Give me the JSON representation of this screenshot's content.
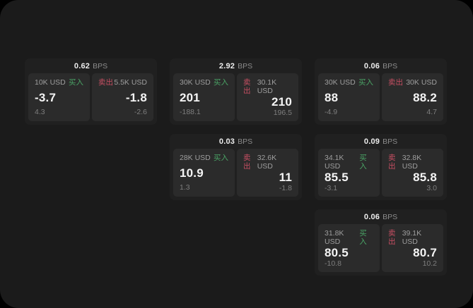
{
  "labels": {
    "buy": "买入",
    "sell": "卖出",
    "bps": "BPS"
  },
  "colors": {
    "buy_green": "#4aa365",
    "sell_red": "#c74f63",
    "surface_bg": "#1b1b1b",
    "card_bg": "#202020",
    "panel_bg": "#2b2b2b"
  },
  "cards": [
    {
      "position": "r1 c1",
      "bps": "0.62",
      "buy": {
        "amount": "10K USD",
        "value": "-3.7",
        "sub": "4.3"
      },
      "sell": {
        "amount": "5.5K USD",
        "value": "-1.8",
        "sub": "-2.6"
      }
    },
    {
      "position": "r1 c2",
      "bps": "2.92",
      "buy": {
        "amount": "30K USD",
        "value": "201",
        "sub": "-188.1"
      },
      "sell": {
        "amount": "30.1K USD",
        "value": "210",
        "sub": "196.5"
      }
    },
    {
      "position": "r1 c3",
      "bps": "0.06",
      "buy": {
        "amount": "30K USD",
        "value": "88",
        "sub": "-4.9"
      },
      "sell": {
        "amount": "30K USD",
        "value": "88.2",
        "sub": "4.7"
      }
    },
    {
      "position": "r2 c2",
      "bps": "0.03",
      "buy": {
        "amount": "28K USD",
        "value": "10.9",
        "sub": "1.3"
      },
      "sell": {
        "amount": "32.6K USD",
        "value": "11",
        "sub": "-1.8"
      }
    },
    {
      "position": "r2 c3",
      "bps": "0.09",
      "buy": {
        "amount": "34.1K USD",
        "value": "85.5",
        "sub": "-3.1"
      },
      "sell": {
        "amount": "32.8K USD",
        "value": "85.8",
        "sub": "3.0"
      }
    },
    {
      "position": "r3 c3",
      "bps": "0.06",
      "buy": {
        "amount": "31.8K USD",
        "value": "80.5",
        "sub": "-10.8"
      },
      "sell": {
        "amount": "39.1K USD",
        "value": "80.7",
        "sub": "10.2"
      }
    }
  ]
}
